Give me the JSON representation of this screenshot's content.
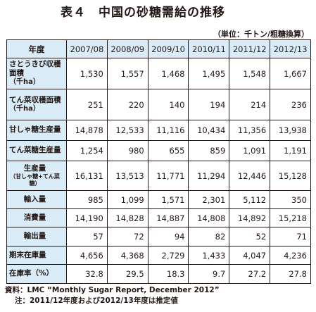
{
  "title": "表４　中国の砂糖需給の推移",
  "unit_note": "（単位：千トン/粗糖換算）",
  "table": {
    "corner": "年度",
    "years": [
      "2007/08",
      "2008/09",
      "2009/10",
      "2010/11",
      "2011/12",
      "2012/13"
    ],
    "rows": [
      {
        "label": "さとうきび収穫面積",
        "sub": "（千ha）",
        "values": [
          "1,530",
          "1,557",
          "1,468",
          "1,495",
          "1,548",
          "1,667"
        ]
      },
      {
        "label": "てん菜収穫面積",
        "sub": "（千ha）",
        "values": [
          "251",
          "220",
          "140",
          "194",
          "214",
          "236"
        ]
      },
      {
        "label": "甘しゃ糖生産量",
        "values": [
          "14,878",
          "12,533",
          "11,116",
          "10,434",
          "11,356",
          "13,938"
        ]
      },
      {
        "label": "てん菜糖生産量",
        "values": [
          "1,254",
          "980",
          "655",
          "859",
          "1,091",
          "1,191"
        ]
      },
      {
        "label": "生産量",
        "sub": "（甘しゃ糖+てん菜糖）",
        "values": [
          "16,131",
          "13,513",
          "11,771",
          "11,294",
          "12,446",
          "15,128"
        ]
      },
      {
        "label": "輸入量",
        "values": [
          "985",
          "1,099",
          "1,571",
          "2,301",
          "5,112",
          "350"
        ]
      },
      {
        "label": "消費量",
        "values": [
          "14,190",
          "14,828",
          "14,887",
          "14,808",
          "14,892",
          "15,218"
        ]
      },
      {
        "label": "輸出量",
        "values": [
          "57",
          "72",
          "94",
          "82",
          "52",
          "71"
        ]
      },
      {
        "label": "期末在庫量",
        "values": [
          "4,656",
          "4,368",
          "2,729",
          "1,433",
          "4,047",
          "4,236"
        ]
      },
      {
        "label": "在庫率（%）",
        "values": [
          "32.8",
          "29.5",
          "18.3",
          "9.7",
          "27.2",
          "27.8"
        ]
      }
    ]
  },
  "notes": {
    "source": "資料：LMC “Monthly Sugar Report, December 2012”",
    "note": "注：2011/12年度および2012/13年度は推定値"
  }
}
